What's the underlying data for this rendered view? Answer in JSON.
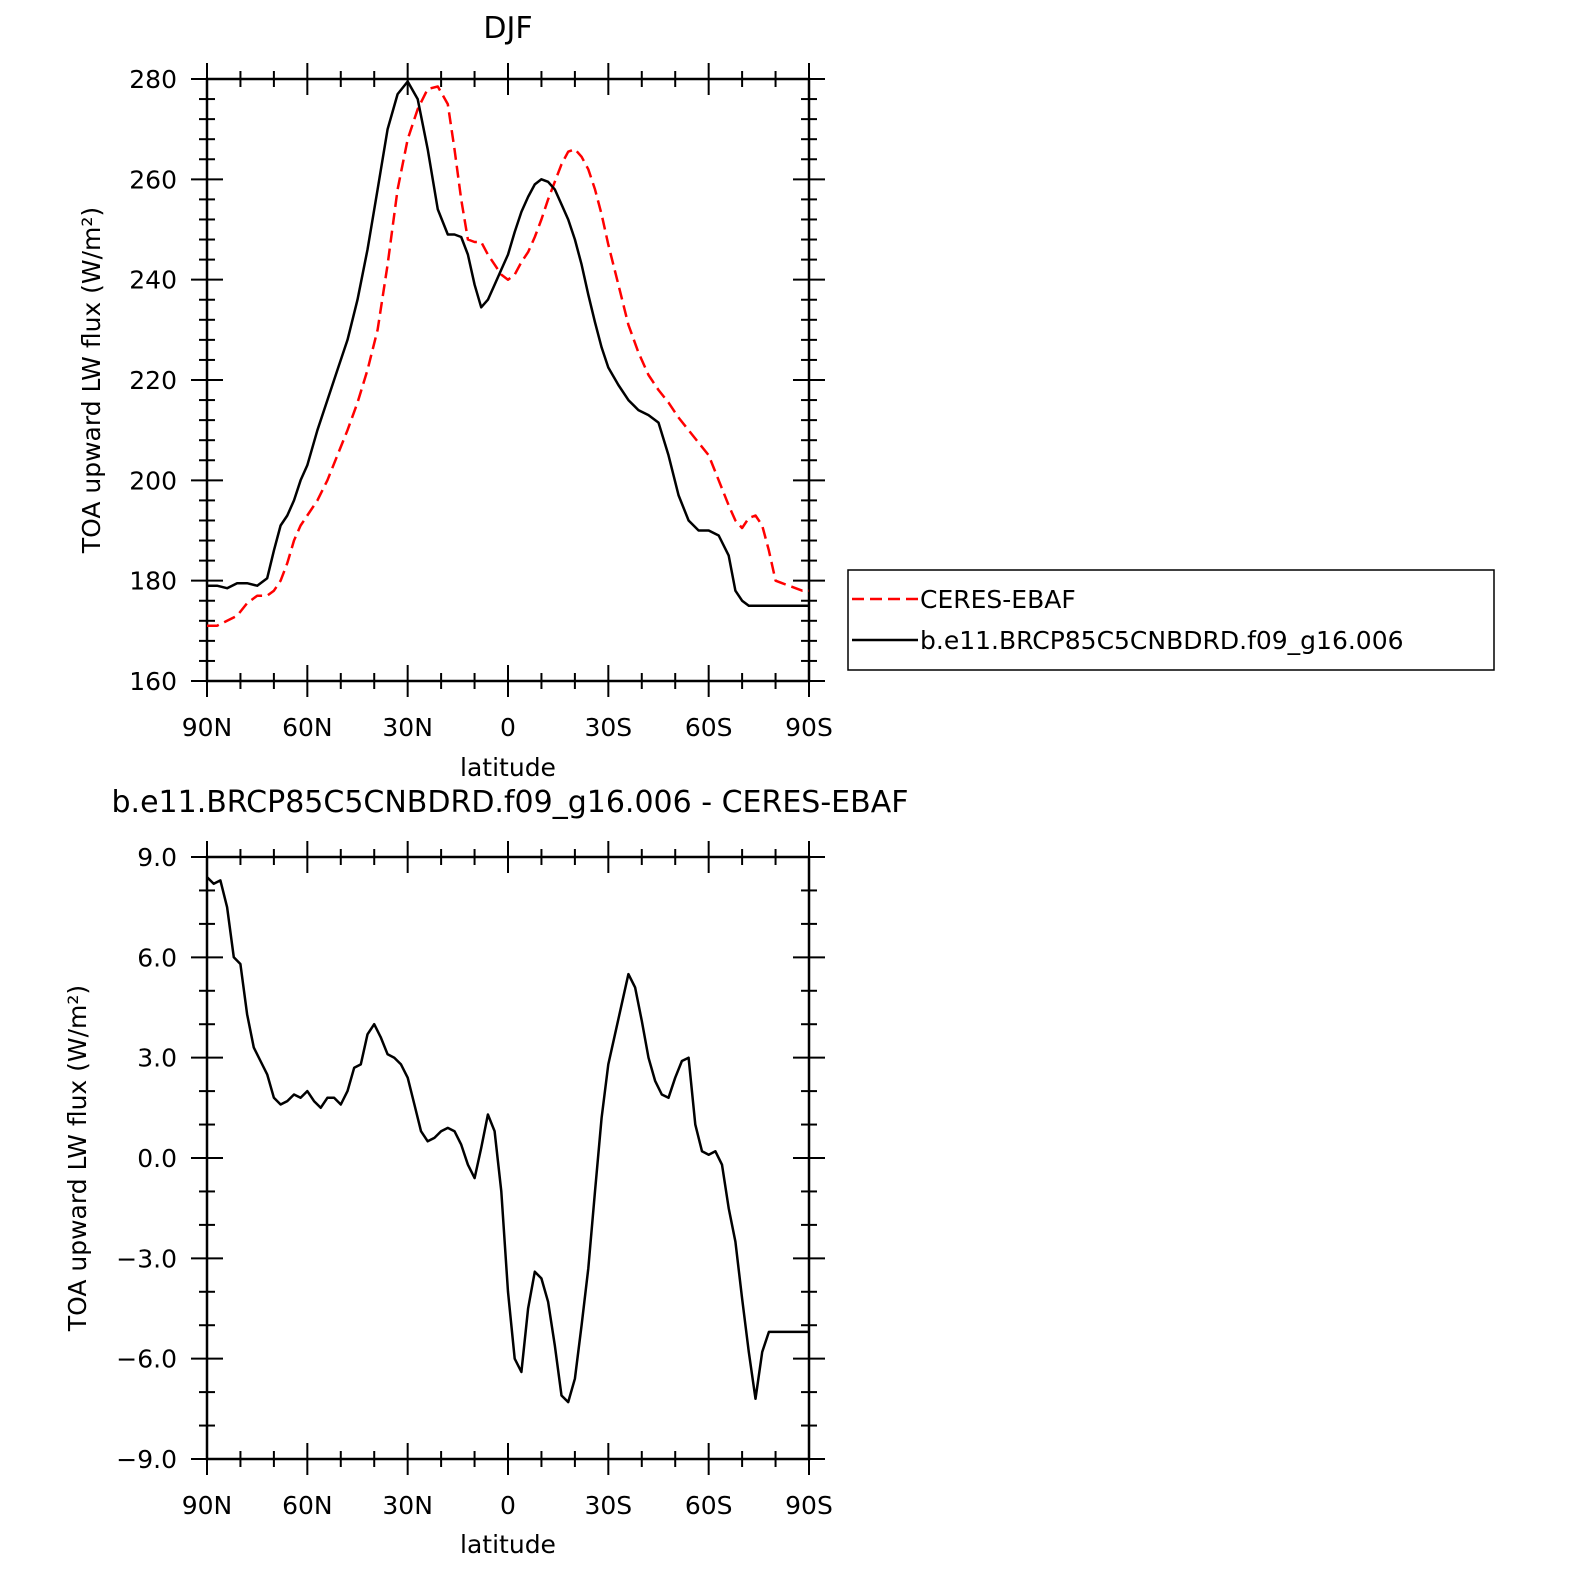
{
  "chart_data": [
    {
      "type": "line",
      "title": "DJF",
      "xlabel": "latitude",
      "ylabel": "TOA upward LW flux (W/m²)",
      "xlim": [
        90,
        -90
      ],
      "ylim": [
        160,
        280
      ],
      "x_ticks": [
        90,
        60,
        30,
        0,
        -30,
        -60,
        -90
      ],
      "x_tick_labels": [
        "90N",
        "60N",
        "30N",
        "0",
        "30S",
        "60S",
        "90S"
      ],
      "y_ticks": [
        160,
        180,
        200,
        220,
        240,
        260,
        280
      ],
      "y_tick_labels": [
        "160",
        "180",
        "200",
        "220",
        "240",
        "260",
        "280"
      ],
      "legend": {
        "placement": "right of plot",
        "entries": [
          "CERES-EBAF",
          "b.e11.BRCP85C5CNBDRD.f09_g16.006"
        ]
      },
      "series": [
        {
          "name": "CERES-EBAF",
          "color": "#ff0000",
          "style": "dashed",
          "x": [
            90,
            87,
            84,
            81,
            78,
            75,
            72,
            70,
            68,
            66,
            64,
            62,
            60,
            57,
            54,
            51,
            48,
            45,
            42,
            39,
            36,
            33,
            30,
            27,
            24,
            21,
            18,
            16,
            14,
            12,
            10,
            8,
            6,
            4,
            2,
            0,
            -2,
            -4,
            -6,
            -8,
            -10,
            -12,
            -14,
            -16,
            -18,
            -20,
            -22,
            -24,
            -26,
            -28,
            -30,
            -33,
            -36,
            -39,
            -42,
            -45,
            -48,
            -51,
            -54,
            -57,
            -60,
            -63,
            -66,
            -68,
            -70,
            -72,
            -74,
            -76,
            -78,
            -80,
            -82,
            -84,
            -86,
            -88,
            -90
          ],
          "y": [
            171,
            171,
            172,
            173,
            175.5,
            177,
            177,
            178,
            180,
            183.5,
            188,
            191,
            193,
            196,
            200,
            205,
            210,
            215.5,
            222,
            230,
            243,
            258,
            268,
            274,
            278,
            278.5,
            275,
            266,
            256,
            248,
            247.5,
            247.5,
            245,
            243,
            241,
            240,
            241,
            243.5,
            245.5,
            248.5,
            252,
            256,
            259.5,
            263,
            265.5,
            266,
            264.5,
            262,
            258,
            253,
            247,
            239,
            231,
            225.5,
            221,
            218,
            215.5,
            212.5,
            210,
            207.5,
            205,
            200,
            195,
            192,
            190.5,
            192.5,
            193,
            191,
            186,
            180,
            179.5,
            179,
            178.5,
            178,
            178
          ],
          "y_fixed": [
            171,
            171,
            172,
            173,
            175.5,
            177,
            177,
            178,
            180,
            183.5,
            188,
            191,
            193,
            196,
            200,
            205,
            210,
            215.5,
            222,
            230,
            243,
            258,
            268,
            274,
            278,
            278.5,
            275,
            266,
            256,
            248,
            247.5,
            247.5,
            245,
            243,
            241,
            240,
            241,
            243.5,
            245.5,
            248.5,
            252,
            256,
            259.5,
            263,
            265.5,
            266,
            264.5,
            262,
            258,
            253,
            247,
            239,
            231,
            225.5,
            221,
            218,
            215.5,
            212.5,
            210,
            207.5,
            205,
            200,
            195,
            192,
            190.5,
            192.5,
            193,
            191,
            186,
            180,
            179.5,
            179,
            178.5,
            178,
            178
          ]
        },
        {
          "name": "b.e11.BRCP85C5CNBDRD.f09_g16.006",
          "color": "#000000",
          "style": "solid",
          "x": [
            90,
            87,
            84,
            81,
            78,
            75,
            72,
            70,
            68,
            66,
            64,
            62,
            60,
            57,
            54,
            51,
            48,
            45,
            42,
            39,
            36,
            33,
            30,
            27,
            24,
            21,
            18,
            16,
            14,
            12,
            10,
            8,
            6,
            4,
            2,
            0,
            -2,
            -4,
            -6,
            -8,
            -10,
            -12,
            -14,
            -16,
            -18,
            -20,
            -22,
            -24,
            -26,
            -28,
            -30,
            -33,
            -36,
            -39,
            -42,
            -45,
            -48,
            -51,
            -54,
            -57,
            -60,
            -63,
            -66,
            -68,
            -70,
            -72,
            -74,
            -76,
            -78,
            -80,
            -82,
            -84,
            -86,
            -88,
            -90
          ],
          "y": [
            179,
            179,
            178.5,
            179.5,
            179.5,
            179,
            180.5,
            186,
            191,
            193,
            196,
            200,
            203,
            210,
            216,
            222,
            228,
            236,
            246,
            258,
            270,
            277,
            279.5,
            276,
            266,
            254,
            249,
            249,
            248.5,
            245,
            239,
            234.5,
            236,
            239,
            242,
            245,
            249.5,
            253.5,
            256.5,
            259,
            260,
            259.5,
            258,
            255,
            252,
            248,
            243,
            237,
            231.5,
            226.5,
            222.5,
            219,
            216,
            214,
            213,
            211.5,
            205,
            197,
            192,
            190,
            190,
            189,
            185,
            178,
            176,
            175,
            175,
            175,
            175,
            175,
            175,
            175,
            175,
            175,
            175
          ]
        }
      ]
    },
    {
      "type": "line",
      "title": "b.e11.BRCP85C5CNBDRD.f09_g16.006 - CERES-EBAF",
      "xlabel": "latitude",
      "ylabel": "TOA upward LW flux (W/m²)",
      "xlim": [
        90,
        -90
      ],
      "ylim": [
        -9,
        9
      ],
      "x_ticks": [
        90,
        60,
        30,
        0,
        -30,
        -60,
        -90
      ],
      "x_tick_labels": [
        "90N",
        "60N",
        "30N",
        "0",
        "30S",
        "60S",
        "90S"
      ],
      "y_ticks": [
        -9,
        -6,
        -3,
        0,
        3,
        6,
        9
      ],
      "y_tick_labels": [
        "−9.0",
        "−6.0",
        "−3.0",
        "0.0",
        "3.0",
        "6.0",
        "9.0"
      ],
      "series": [
        {
          "color": "#000000",
          "style": "solid",
          "x": [
            90,
            88,
            86,
            84,
            82,
            80,
            78,
            76,
            74,
            72,
            70,
            68,
            66,
            64,
            62,
            60,
            58,
            56,
            54,
            52,
            50,
            48,
            46,
            44,
            42,
            40,
            38,
            36,
            34,
            32,
            30,
            28,
            26,
            24,
            22,
            20,
            18,
            16,
            14,
            12,
            10,
            8,
            6,
            4,
            2,
            0,
            -2,
            -4,
            -6,
            -8,
            -10,
            -12,
            -14,
            -16,
            -18,
            -20,
            -22,
            -24,
            -26,
            -28,
            -30,
            -32,
            -34,
            -36,
            -38,
            -40,
            -42,
            -44,
            -46,
            -48,
            -50,
            -52,
            -54,
            -56,
            -58,
            -60,
            -62,
            -64,
            -66,
            -68,
            -70,
            -72,
            -74,
            -76,
            -78,
            -80,
            -82,
            -84,
            -86,
            -88,
            -90
          ],
          "y": [
            8.4,
            8.2,
            8.3,
            7.5,
            6.0,
            5.8,
            4.3,
            3.3,
            2.9,
            2.5,
            1.8,
            1.6,
            1.7,
            1.9,
            1.8,
            2.0,
            1.7,
            1.5,
            1.8,
            1.8,
            1.6,
            2.0,
            2.7,
            2.8,
            3.7,
            4.0,
            3.6,
            3.1,
            3.0,
            2.8,
            2.4,
            1.6,
            0.8,
            0.5,
            0.6,
            0.8,
            0.9,
            0.8,
            0.4,
            -0.2,
            -0.6,
            0.3,
            1.3,
            0.8,
            -1.0,
            -4.0,
            -6.0,
            -6.4,
            -4.5,
            -3.4,
            -3.6,
            -4.3,
            -5.6,
            -7.1,
            -7.3,
            -6.6,
            -5.0,
            -3.3,
            -1.0,
            1.2,
            2.8,
            3.7,
            4.6,
            5.5,
            5.1,
            4.1,
            3.0,
            2.3,
            1.9,
            1.8,
            2.4,
            2.9,
            3.0,
            1.0,
            0.2,
            0.1,
            0.2,
            -0.2,
            -1.5,
            -2.5,
            -4.2,
            -5.8,
            -7.2,
            -5.8,
            -5.2,
            -5.2,
            -5.2,
            -5.2,
            -5.2,
            -5.2,
            -5.2
          ]
        }
      ]
    }
  ]
}
